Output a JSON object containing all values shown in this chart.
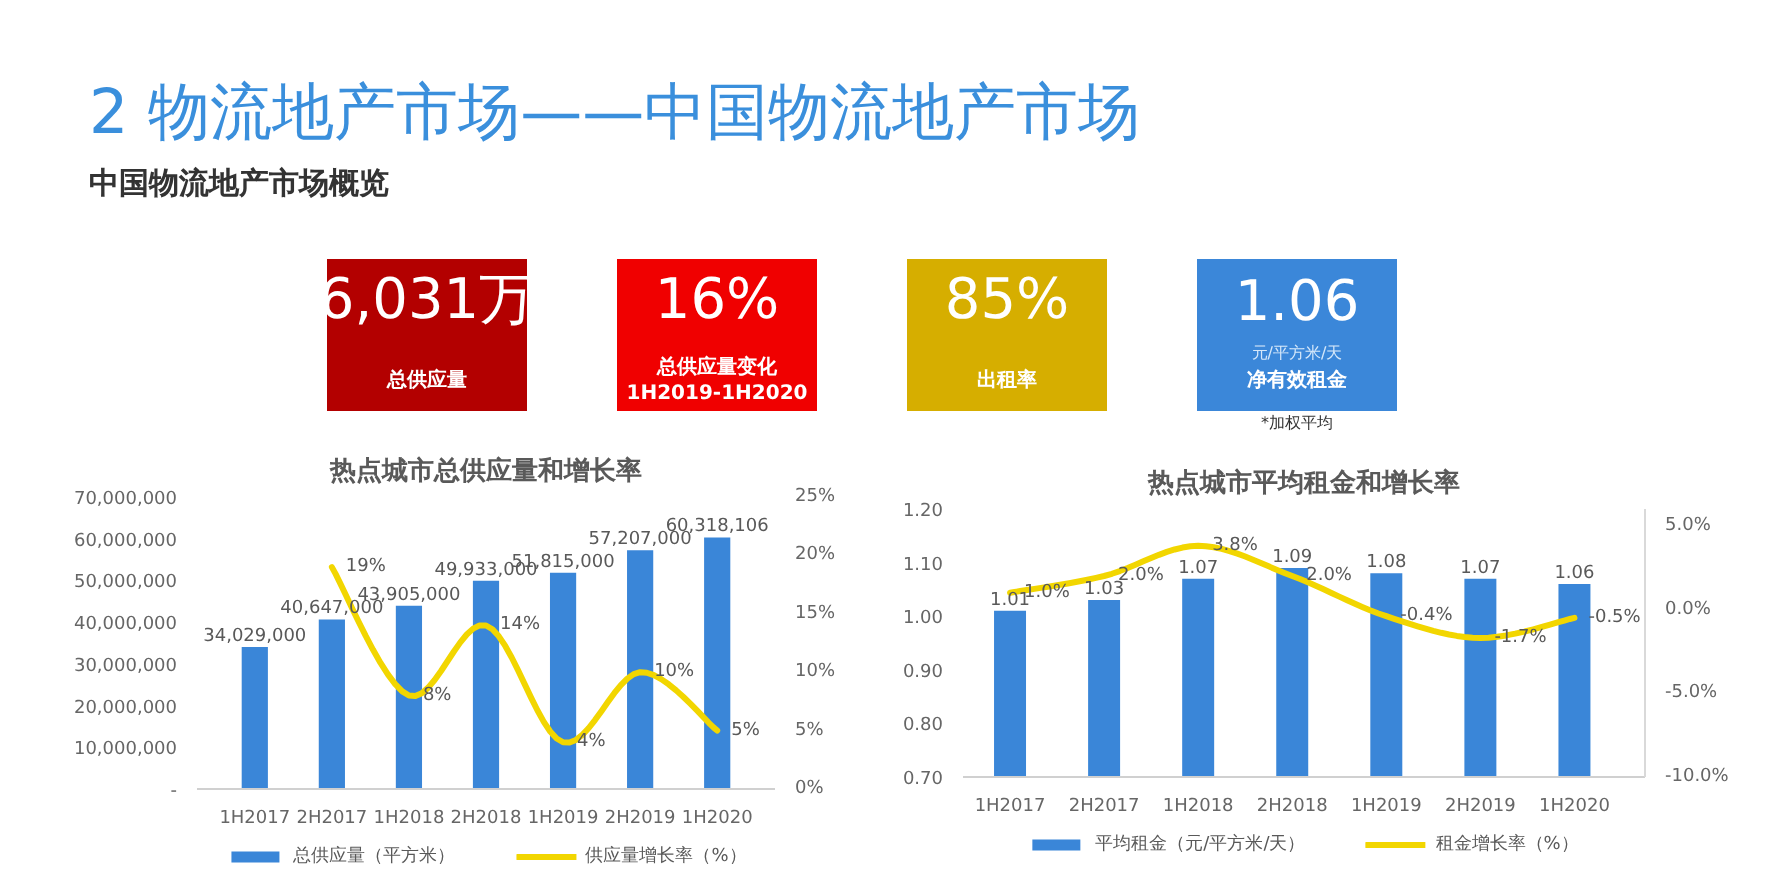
{
  "chart_data": [
    {
      "type": "other",
      "title": "2 物流地产市场——中国物流地产市场",
      "subtitle": "中国物流地产市场概览",
      "categories": [
        "总供应量",
        "总供应量变化\n1H2019-1H2020",
        "出租率",
        "净有效租金"
      ],
      "value_labels": [
        "6,031万",
        "16%",
        "85%",
        "1.06"
      ],
      "colors": [
        "#b30000",
        "#f00000",
        "#d6ae00",
        "#3b87d9"
      ],
      "annotations": [
        "元/平方米/天",
        "*加权平均"
      ]
    },
    {
      "type": "bar",
      "title": "热点城市总供应量和增长率",
      "categories": [
        "1H2017",
        "2H2017",
        "1H2018",
        "2H2018",
        "1H2019",
        "2H2019",
        "1H2020"
      ],
      "series": [
        {
          "name": "总供应量（平方米）",
          "type": "bar",
          "color": "#3a86d8",
          "values": [
            34029000,
            40647000,
            43905000,
            49933000,
            51815000,
            57207000,
            60318106
          ],
          "value_labels": [
            "34,029,000",
            "40,647,000",
            "43,905,000",
            "49,933,000",
            "51,815,000",
            "57,207,000",
            "60,318,106"
          ]
        },
        {
          "name": "供应量增长率（%）",
          "type": "line",
          "axis": "y2",
          "color": "#f2d600",
          "values": [
            null,
            19,
            8,
            14,
            4,
            10,
            5
          ],
          "value_labels": [
            null,
            "19%",
            "8%",
            "14%",
            "4%",
            "10%",
            "5%"
          ]
        }
      ],
      "ylim": [
        0,
        70000000
      ],
      "yticks": [
        {
          "value": 0,
          "label": "-"
        },
        {
          "value": 10000000,
          "label": "10,000,000"
        },
        {
          "value": 20000000,
          "label": "20,000,000"
        },
        {
          "value": 30000000,
          "label": "30,000,000"
        },
        {
          "value": 40000000,
          "label": "40,000,000"
        },
        {
          "value": 50000000,
          "label": "50,000,000"
        },
        {
          "value": 60000000,
          "label": "60,000,000"
        },
        {
          "value": 70000000,
          "label": "70,000,000"
        }
      ],
      "y2lim": [
        0,
        25
      ],
      "y2ticks": [
        {
          "value": 0,
          "label": "0%"
        },
        {
          "value": 5,
          "label": "5%"
        },
        {
          "value": 10,
          "label": "10%"
        },
        {
          "value": 15,
          "label": "15%"
        },
        {
          "value": 20,
          "label": "20%"
        },
        {
          "value": 25,
          "label": "25%"
        }
      ],
      "grid": false,
      "legend": "bottom"
    },
    {
      "type": "bar",
      "title": "热点城市平均租金和增长率",
      "categories": [
        "1H2017",
        "2H2017",
        "1H2018",
        "2H2018",
        "1H2019",
        "2H2019",
        "1H2020"
      ],
      "series": [
        {
          "name": "平均租金（元/平方米/天）",
          "type": "bar",
          "color": "#3a86d8",
          "values": [
            1.01,
            1.03,
            1.07,
            1.09,
            1.08,
            1.07,
            1.06
          ],
          "value_labels": [
            "1.01",
            "1.03",
            "1.07",
            "1.09",
            "1.08",
            "1.07",
            "1.06"
          ]
        },
        {
          "name": "租金增长率（%）",
          "type": "line",
          "axis": "y2",
          "color": "#f2d600",
          "values": [
            1.0,
            2.0,
            3.8,
            2.0,
            -0.4,
            -1.7,
            -0.5
          ],
          "value_labels": [
            "1.0%",
            "2.0%",
            "3.8%",
            "2.0%",
            "-0.4%",
            "-1.7%",
            "-0.5%"
          ]
        }
      ],
      "ylim": [
        0.7,
        1.2
      ],
      "yticks": [
        {
          "value": 0.7,
          "label": "0.70"
        },
        {
          "value": 0.8,
          "label": "0.80"
        },
        {
          "value": 0.9,
          "label": "0.90"
        },
        {
          "value": 1.0,
          "label": "1.00"
        },
        {
          "value": 1.1,
          "label": "1.10"
        },
        {
          "value": 1.2,
          "label": "1.20"
        }
      ],
      "y2lim": [
        -10,
        6
      ],
      "y2ticks": [
        {
          "value": -10,
          "label": "-10.0%"
        },
        {
          "value": -5,
          "label": "-5.0%"
        },
        {
          "value": 0,
          "label": "0.0%"
        },
        {
          "value": 5,
          "label": "5.0%"
        }
      ],
      "grid": false,
      "legend": "bottom"
    }
  ]
}
